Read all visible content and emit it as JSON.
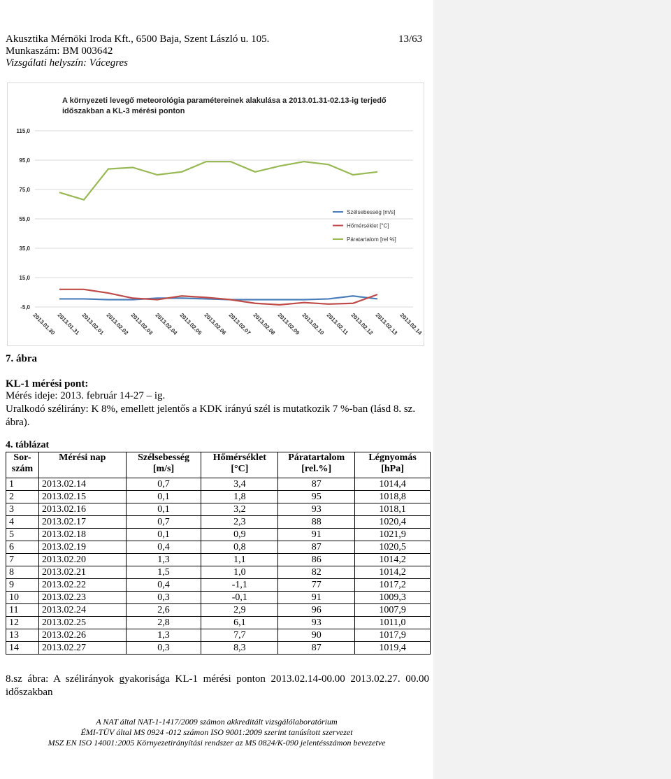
{
  "header": {
    "line1": "Akusztika Mérnöki Iroda Kft., 6500 Baja, Szent László u. 105.",
    "page": "13/63",
    "line2": "Munkaszám: BM 003642",
    "line3": "Vizsgálati helyszín: Vácegres"
  },
  "chart_data": {
    "type": "line",
    "title": [
      "A környezeti levegő meteorológia paramétereinek alakulása a 2013.01.31-02.13-ig terjedő",
      "időszakban a KL-3 mérési ponton"
    ],
    "categories": [
      "2013.01.30",
      "2013.01.31",
      "2013.02.01",
      "2013.02.02",
      "2013.02.03",
      "2013.02.04",
      "2013.02.05",
      "2013.02.06",
      "2013.02.07",
      "2013.02.08",
      "2013.02.09",
      "2013.02.10",
      "2013.02.11",
      "2013.02.12",
      "2013.02.13",
      "2013.02.14"
    ],
    "series": [
      {
        "name": "Szélsebesség [m/s]",
        "color": "#4a7ebb",
        "values": [
          null,
          0.5,
          0.5,
          0,
          0,
          1,
          1,
          0.5,
          0,
          0,
          0,
          0,
          0.5,
          2.5,
          0.5,
          null
        ]
      },
      {
        "name": "Hőmérséklet [°C]",
        "color": "#be4b48",
        "values": [
          null,
          7,
          7,
          4.5,
          1,
          0,
          2.5,
          1.5,
          0,
          -2.5,
          -3.5,
          -2,
          -3,
          -2.5,
          3.5,
          null
        ]
      },
      {
        "name": "Páratartalom [rel %]",
        "color": "#98b954",
        "values": [
          null,
          73,
          68,
          89,
          90,
          85,
          87,
          94,
          94,
          87,
          91,
          94,
          92,
          85,
          87,
          null
        ]
      }
    ],
    "ylim": [
      -5,
      115
    ],
    "yticks": [
      {
        "value": 115,
        "label": "115,0"
      },
      {
        "value": 95,
        "label": "95,0"
      },
      {
        "value": 75,
        "label": "75,0"
      },
      {
        "value": 55,
        "label": "55,0"
      },
      {
        "value": 35,
        "label": "35,0"
      },
      {
        "value": 15,
        "label": "15,0"
      },
      {
        "value": -5,
        "label": "-5,0"
      }
    ],
    "grid": true,
    "legend": "right"
  },
  "figure_caption": "7. ábra",
  "section": {
    "title": "KL-1 mérési pont:",
    "time": "Mérés ideje: 2013. február 14-27 – ig.",
    "wind": "Uralkodó szélirány: K 8%, emellett jelentős a KDK irányú szél is mutatkozik 7 %-ban (lásd 8. sz. ábra)."
  },
  "table": {
    "caption": "4. táblázat",
    "header": [
      [
        "Sor-",
        "szám"
      ],
      [
        "Mérési nap"
      ],
      [
        "Szélsebesség",
        "[m/s]"
      ],
      [
        "Hőmérséklet",
        "[°C]"
      ],
      [
        "Páratartalom",
        "[rel.%]"
      ],
      [
        "Légnyomás",
        "[hPa]"
      ]
    ],
    "rows": [
      [
        "1",
        "2013.02.14",
        "0,7",
        "3,4",
        "87",
        "1014,4"
      ],
      [
        "2",
        "2013.02.15",
        "0,1",
        "1,8",
        "95",
        "1018,8"
      ],
      [
        "3",
        "2013.02.16",
        "0,1",
        "3,2",
        "93",
        "1018,1"
      ],
      [
        "4",
        "2013.02.17",
        "0,7",
        "2,3",
        "88",
        "1020,4"
      ],
      [
        "5",
        "2013.02.18",
        "0,1",
        "0,9",
        "91",
        "1021,9"
      ],
      [
        "6",
        "2013.02.19",
        "0,4",
        "0,8",
        "87",
        "1020,5"
      ],
      [
        "7",
        "2013.02.20",
        "1,3",
        "1,1",
        "86",
        "1014,2"
      ],
      [
        "8",
        "2013.02.21",
        "1,5",
        "1,0",
        "82",
        "1014,2"
      ],
      [
        "9",
        "2013.02.22",
        "0,4",
        "-1,1",
        "77",
        "1017,2"
      ],
      [
        "10",
        "2013.02.23",
        "0,3",
        "-0,1",
        "91",
        "1009,3"
      ],
      [
        "11",
        "2013.02.24",
        "2,6",
        "2,9",
        "96",
        "1007,9"
      ],
      [
        "12",
        "2013.02.25",
        "2,8",
        "6,1",
        "93",
        "1011,0"
      ],
      [
        "13",
        "2013.02.26",
        "1,3",
        "7,7",
        "90",
        "1017,9"
      ],
      [
        "14",
        "2013.02.27",
        "0,3",
        "8,3",
        "87",
        "1019,4"
      ]
    ]
  },
  "figure8_caption": "8.sz ábra: A szélirányok gyakorisága KL-1 mérési ponton 2013.02.14-00.00 2013.02.27. 00.00 időszakban",
  "footer": [
    "A NAT által NAT-1-1417/2009 számon akkreditált vizsgálólaboratórium",
    "ÉMI-TÜV által MS 0924 -012 számon ISO 9001:2009 szerint tanúsított szervezet",
    "MSZ EN ISO 14001:2005 Környezetirányítási rendszer az MS 0824/K-090 jelentésszámon bevezetve"
  ]
}
